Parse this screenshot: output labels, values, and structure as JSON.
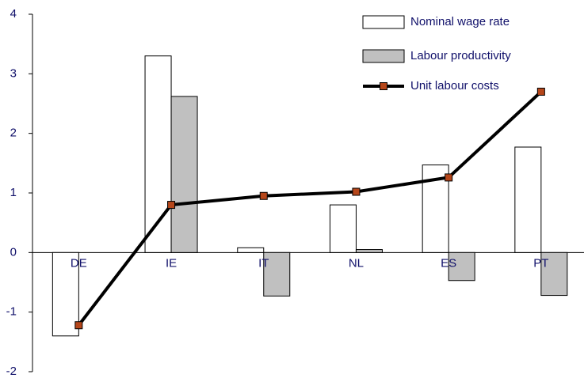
{
  "chart_data": {
    "type": "bar",
    "categories": [
      "DE",
      "IE",
      "IT",
      "NL",
      "ES",
      "PT"
    ],
    "series": [
      {
        "name": "Nominal wage rate",
        "type": "bar",
        "color": "#ffffff",
        "values": [
          -1.4,
          3.3,
          0.08,
          0.8,
          1.47,
          1.77
        ]
      },
      {
        "name": "Labour productivity",
        "type": "bar",
        "color": "#c0c0c0",
        "values": [
          0,
          2.62,
          -0.73,
          0.05,
          -0.47,
          -0.72
        ]
      },
      {
        "name": "Unit labour costs",
        "type": "line",
        "color": "#000000",
        "marker_color": "#b5461a",
        "values": [
          -1.22,
          0.8,
          0.95,
          1.02,
          1.26,
          2.7
        ]
      }
    ],
    "ylim": [
      -2,
      4
    ],
    "yticks": [
      -2,
      -1,
      0,
      1,
      2,
      3,
      4
    ],
    "legend": "top-right"
  }
}
